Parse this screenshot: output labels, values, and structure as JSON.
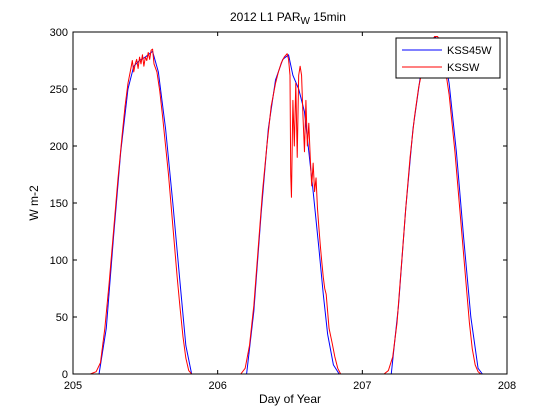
{
  "chart_data": {
    "type": "line",
    "title_main": "2012 L1 PAR",
    "title_sub": "W",
    "title_tail": " 15min",
    "xlabel": "Day of Year",
    "ylabel": "W m-2",
    "xlim": [
      205,
      208
    ],
    "ylim": [
      0,
      300
    ],
    "xticks": [
      205,
      206,
      207,
      208
    ],
    "yticks": [
      0,
      50,
      100,
      150,
      200,
      250,
      300
    ],
    "grid": false,
    "legend_position": "top-right",
    "series": [
      {
        "name": "KSS45W",
        "color": "#0000ff",
        "points": [
          [
            205.0,
            0
          ],
          [
            205.18,
            0
          ],
          [
            205.23,
            40
          ],
          [
            205.28,
            120
          ],
          [
            205.33,
            195
          ],
          [
            205.38,
            250
          ],
          [
            205.42,
            270
          ],
          [
            205.46,
            275
          ],
          [
            205.5,
            278
          ],
          [
            205.55,
            283
          ],
          [
            205.59,
            265
          ],
          [
            205.64,
            215
          ],
          [
            205.69,
            150
          ],
          [
            205.74,
            80
          ],
          [
            205.78,
            25
          ],
          [
            205.82,
            0
          ],
          [
            206.0,
            0
          ],
          [
            206.2,
            0
          ],
          [
            206.25,
            55
          ],
          [
            206.3,
            140
          ],
          [
            206.35,
            215
          ],
          [
            206.4,
            258
          ],
          [
            206.45,
            276
          ],
          [
            206.49,
            280
          ],
          [
            206.52,
            262
          ],
          [
            206.56,
            250
          ],
          [
            206.6,
            230
          ],
          [
            206.66,
            160
          ],
          [
            206.7,
            110
          ],
          [
            206.73,
            70
          ],
          [
            206.76,
            35
          ],
          [
            206.8,
            8
          ],
          [
            206.84,
            0
          ],
          [
            207.2,
            0
          ],
          [
            207.25,
            60
          ],
          [
            207.3,
            145
          ],
          [
            207.35,
            215
          ],
          [
            207.4,
            260
          ],
          [
            207.45,
            285
          ],
          [
            207.5,
            296
          ],
          [
            207.55,
            290
          ],
          [
            207.6,
            255
          ],
          [
            207.65,
            195
          ],
          [
            207.7,
            120
          ],
          [
            207.75,
            50
          ],
          [
            207.8,
            5
          ],
          [
            207.83,
            0
          ],
          [
            208.0,
            0
          ]
        ]
      },
      {
        "name": "KSSW",
        "color": "#ff0000",
        "points": [
          [
            205.0,
            0
          ],
          [
            205.08,
            0
          ],
          [
            205.12,
            0
          ],
          [
            205.16,
            2
          ],
          [
            205.19,
            10
          ],
          [
            205.22,
            40
          ],
          [
            205.25,
            80
          ],
          [
            205.28,
            125
          ],
          [
            205.31,
            170
          ],
          [
            205.34,
            210
          ],
          [
            205.36,
            235
          ],
          [
            205.38,
            255
          ],
          [
            205.4,
            268
          ],
          [
            205.41,
            275
          ],
          [
            205.42,
            265
          ],
          [
            205.43,
            272
          ],
          [
            205.44,
            276
          ],
          [
            205.45,
            268
          ],
          [
            205.46,
            278
          ],
          [
            205.47,
            272
          ],
          [
            205.48,
            280
          ],
          [
            205.49,
            270
          ],
          [
            205.5,
            278
          ],
          [
            205.51,
            275
          ],
          [
            205.52,
            282
          ],
          [
            205.53,
            276
          ],
          [
            205.54,
            284
          ],
          [
            205.55,
            285
          ],
          [
            205.56,
            272
          ],
          [
            205.58,
            265
          ],
          [
            205.6,
            248
          ],
          [
            205.62,
            225
          ],
          [
            205.64,
            200
          ],
          [
            205.66,
            175
          ],
          [
            205.68,
            145
          ],
          [
            205.7,
            115
          ],
          [
            205.72,
            85
          ],
          [
            205.74,
            58
          ],
          [
            205.76,
            33
          ],
          [
            205.78,
            14
          ],
          [
            205.8,
            3
          ],
          [
            205.82,
            0
          ],
          [
            205.9,
            0
          ],
          [
            206.0,
            0
          ],
          [
            206.1,
            0
          ],
          [
            206.16,
            0
          ],
          [
            206.19,
            5
          ],
          [
            206.22,
            25
          ],
          [
            206.25,
            60
          ],
          [
            206.28,
            110
          ],
          [
            206.31,
            160
          ],
          [
            206.34,
            200
          ],
          [
            206.37,
            235
          ],
          [
            206.4,
            255
          ],
          [
            206.42,
            265
          ],
          [
            206.44,
            273
          ],
          [
            206.46,
            278
          ],
          [
            206.48,
            281
          ],
          [
            206.49,
            276
          ],
          [
            206.5,
            262
          ],
          [
            206.505,
            175
          ],
          [
            206.51,
            155
          ],
          [
            206.52,
            240
          ],
          [
            206.53,
            200
          ],
          [
            206.54,
            255
          ],
          [
            206.55,
            190
          ],
          [
            206.56,
            262
          ],
          [
            206.57,
            270
          ],
          [
            206.58,
            262
          ],
          [
            206.59,
            225
          ],
          [
            206.6,
            195
          ],
          [
            206.61,
            240
          ],
          [
            206.62,
            200
          ],
          [
            206.63,
            220
          ],
          [
            206.64,
            190
          ],
          [
            206.65,
            165
          ],
          [
            206.66,
            185
          ],
          [
            206.67,
            160
          ],
          [
            206.68,
            172
          ],
          [
            206.69,
            145
          ],
          [
            206.7,
            128
          ],
          [
            206.71,
            112
          ],
          [
            206.72,
            98
          ],
          [
            206.73,
            85
          ],
          [
            206.74,
            75
          ],
          [
            206.75,
            70
          ],
          [
            206.76,
            55
          ],
          [
            206.77,
            40
          ],
          [
            206.79,
            28
          ],
          [
            206.81,
            15
          ],
          [
            206.83,
            5
          ],
          [
            206.85,
            0
          ],
          [
            206.95,
            0
          ],
          [
            207.05,
            0
          ],
          [
            207.15,
            0
          ],
          [
            207.18,
            3
          ],
          [
            207.21,
            15
          ],
          [
            207.24,
            45
          ],
          [
            207.27,
            95
          ],
          [
            207.3,
            145
          ],
          [
            207.33,
            190
          ],
          [
            207.36,
            225
          ],
          [
            207.39,
            252
          ],
          [
            207.42,
            270
          ],
          [
            207.45,
            283
          ],
          [
            207.48,
            292
          ],
          [
            207.5,
            296
          ],
          [
            207.52,
            296
          ],
          [
            207.54,
            292
          ],
          [
            207.56,
            280
          ],
          [
            207.58,
            262
          ],
          [
            207.6,
            245
          ],
          [
            207.62,
            220
          ],
          [
            207.64,
            195
          ],
          [
            207.66,
            165
          ],
          [
            207.68,
            135
          ],
          [
            207.7,
            105
          ],
          [
            207.72,
            75
          ],
          [
            207.74,
            45
          ],
          [
            207.76,
            22
          ],
          [
            207.78,
            8
          ],
          [
            207.8,
            2
          ],
          [
            207.82,
            0
          ],
          [
            207.9,
            0
          ],
          [
            208.0,
            0
          ]
        ]
      }
    ]
  }
}
